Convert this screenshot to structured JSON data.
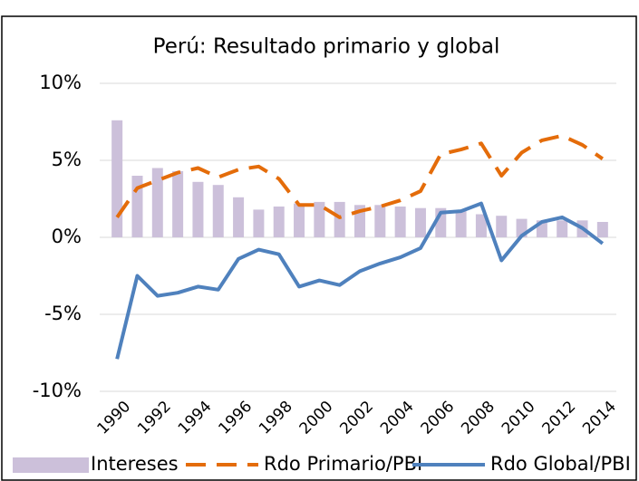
{
  "chart_data": {
    "type": "combo",
    "title": "Perú: Resultado primario y global",
    "categories": [
      "1990",
      null,
      "1992",
      null,
      "1994",
      null,
      "1996",
      null,
      "1998",
      null,
      "2000",
      null,
      "2002",
      null,
      "2004",
      null,
      "2006",
      null,
      "2008",
      null,
      "2010",
      null,
      "2012",
      null,
      "2014"
    ],
    "series": [
      {
        "name": "Intereses",
        "type": "bar",
        "color": "#ccc0da",
        "values": [
          7.6,
          4.0,
          4.5,
          4.3,
          3.6,
          3.4,
          2.6,
          1.8,
          2.0,
          2.2,
          2.3,
          2.3,
          2.1,
          2.1,
          2.0,
          1.9,
          1.9,
          1.7,
          1.5,
          1.4,
          1.2,
          1.1,
          1.1,
          1.1,
          1.0
        ]
      },
      {
        "name": "Rdo Primario/PBI",
        "type": "line",
        "dashed": true,
        "color": "#e46c0a",
        "values": [
          1.3,
          3.2,
          3.7,
          4.2,
          4.5,
          3.9,
          4.4,
          4.6,
          3.8,
          2.1,
          2.1,
          1.3,
          1.7,
          2.0,
          2.4,
          3.0,
          5.4,
          5.7,
          6.1,
          4.0,
          5.5,
          6.3,
          6.6,
          6.0,
          5.1
        ]
      },
      {
        "name": "Rdo Global/PBI",
        "type": "line",
        "dashed": false,
        "color": "#4f81bd",
        "values": [
          -7.9,
          -2.5,
          -3.8,
          -3.6,
          -3.2,
          -3.4,
          -1.4,
          -0.8,
          -1.1,
          -3.2,
          -2.8,
          -3.1,
          -2.2,
          -1.7,
          -1.3,
          -0.7,
          1.6,
          1.7,
          2.2,
          -1.5,
          0.1,
          1.0,
          1.3,
          0.6,
          -0.4
        ]
      }
    ],
    "ylim": [
      -10,
      10
    ],
    "yticks": [
      {
        "value": -10,
        "label": "-10%"
      },
      {
        "value": -5,
        "label": "-5%"
      },
      {
        "value": 0,
        "label": "0%"
      },
      {
        "value": 5,
        "label": "5%"
      },
      {
        "value": 10,
        "label": "10%"
      }
    ],
    "grid": true,
    "legend": "bottom"
  }
}
